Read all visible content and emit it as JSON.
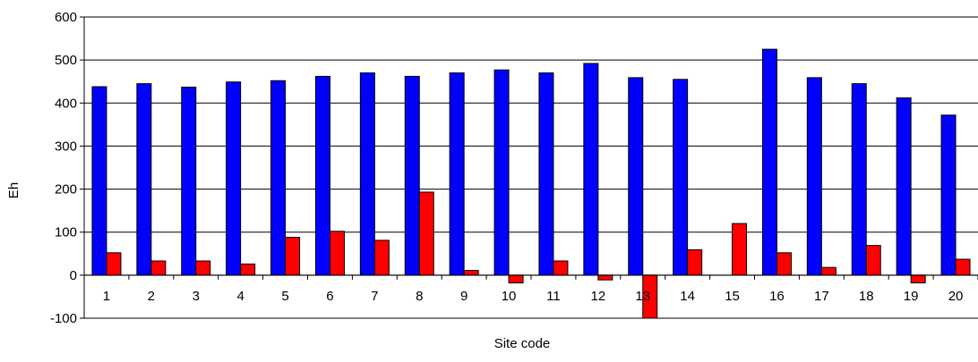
{
  "chart_data": {
    "type": "bar",
    "title": "",
    "xlabel": "Site code",
    "ylabel": "Eh",
    "ylim": [
      -100,
      600
    ],
    "yticks": [
      -100,
      0,
      100,
      200,
      300,
      400,
      500,
      600
    ],
    "grid": true,
    "legend": "none",
    "categories": [
      "1",
      "2",
      "3",
      "4",
      "5",
      "6",
      "7",
      "8",
      "9",
      "10",
      "11",
      "12",
      "13",
      "14",
      "15",
      "16",
      "17",
      "18",
      "19",
      "20"
    ],
    "series": [
      {
        "color": "#0000ff",
        "values": [
          438,
          445,
          437,
          449,
          452,
          462,
          470,
          462,
          470,
          477,
          470,
          492,
          459,
          455,
          null,
          525,
          459,
          445,
          412,
          372
        ]
      },
      {
        "color": "#ff0000",
        "values": [
          52,
          33,
          33,
          26,
          88,
          102,
          81,
          193,
          11,
          -18,
          33,
          -11,
          -100,
          59,
          120,
          52,
          18,
          69,
          -18,
          37
        ]
      }
    ]
  }
}
